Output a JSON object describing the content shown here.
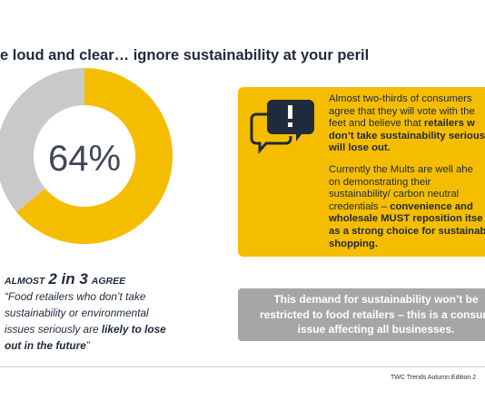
{
  "title": "e loud and clear… ignore sustainability at your peril",
  "chart_data": {
    "type": "pie",
    "donut": true,
    "categories": [
      null,
      null
    ],
    "values": [
      64,
      36
    ],
    "value_labels": [
      "64%",
      null
    ],
    "colors": [
      "#f5bd00",
      "#c9c9c9"
    ]
  },
  "stat": {
    "prefix": "ALMOST",
    "highlight": "2 in 3",
    "suffix": "AGREE",
    "quote": [
      [
        {
          "text": "“Food retailers who don’t take",
          "bold": false
        }
      ],
      [
        {
          "text": "sustainability or environmental",
          "bold": false
        }
      ],
      [
        {
          "text": "issues seriously are ",
          "bold": false
        },
        {
          "text": "likely to lose",
          "bold": true
        }
      ],
      [
        {
          "text": "out in the future",
          "bold": true
        },
        {
          "text": "”",
          "bold": false
        }
      ]
    ]
  },
  "callout": {
    "paragraphs": [
      [
        [
          {
            "text": "Almost two-thirds of consumers",
            "bold": false
          }
        ],
        [
          {
            "text": "agree that they will vote with the",
            "bold": false
          }
        ],
        [
          {
            "text": "feet and believe that ",
            "bold": false
          },
          {
            "text": "retailers w",
            "bold": true
          }
        ],
        [
          {
            "text": "don’t take sustainability serious",
            "bold": true
          }
        ],
        [
          {
            "text": "will lose out.",
            "bold": true
          }
        ]
      ],
      [
        [
          {
            "text": "Currently the Mults are well ahe",
            "bold": false
          }
        ],
        [
          {
            "text": "on demonstrating their",
            "bold": false
          }
        ],
        [
          {
            "text": "sustainability/ carbon neutral",
            "bold": false
          }
        ],
        [
          {
            "text": "credentials – ",
            "bold": false
          },
          {
            "text": "convenience and",
            "bold": true
          }
        ],
        [
          {
            "text": "wholesale MUST reposition itse",
            "bold": true
          }
        ],
        [
          {
            "text": "as a strong choice for sustainab",
            "bold": true
          }
        ],
        [
          {
            "text": "shopping.",
            "bold": true
          }
        ]
      ]
    ]
  },
  "banner": {
    "lines": [
      "This demand for sustainability won’t be",
      "restricted to food retailers – this is a consum",
      "issue affecting all businesses."
    ]
  },
  "footer": "TWC Trends Autumn Edition 2"
}
